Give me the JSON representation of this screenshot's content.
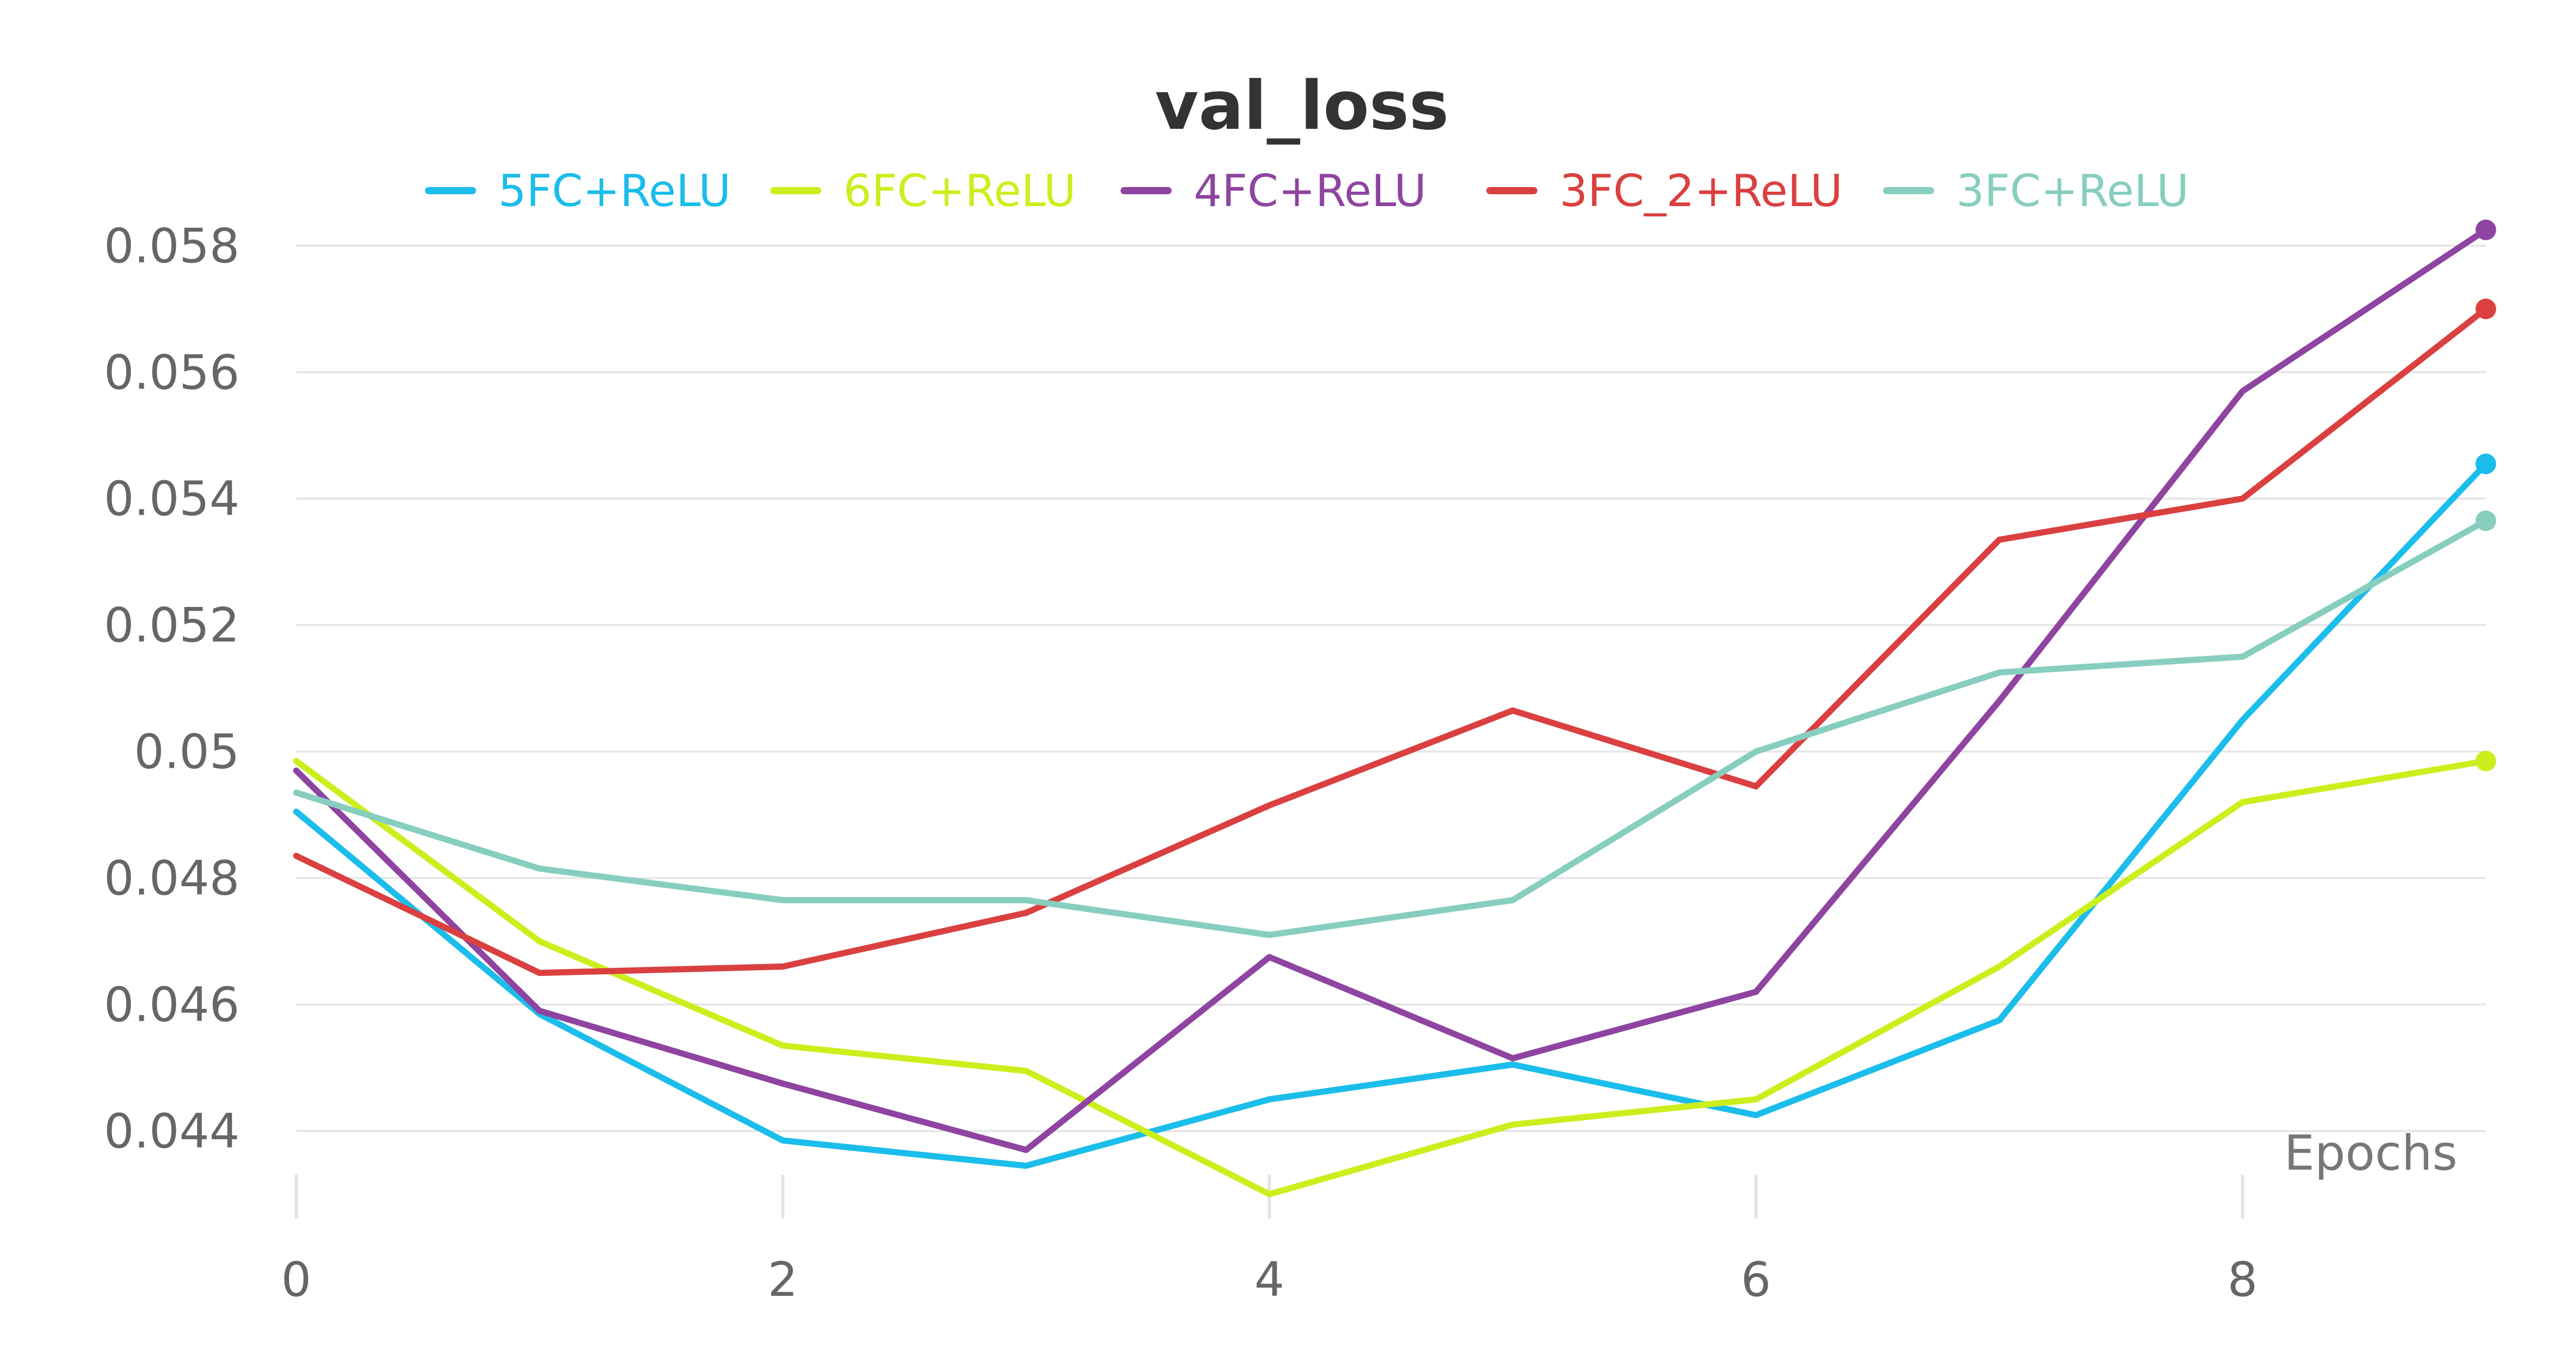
{
  "chart_data": {
    "type": "line",
    "title": "val_loss",
    "xlabel": "Epochs",
    "ylabel": "",
    "x": [
      0,
      1,
      2,
      3,
      4,
      5,
      6,
      7,
      8,
      9
    ],
    "xticks": [
      0,
      2,
      4,
      6,
      8
    ],
    "xtick_labels": [
      "0",
      "2",
      "4",
      "6",
      "8"
    ],
    "yticks": [
      0.044,
      0.046,
      0.048,
      0.05,
      0.052,
      0.054,
      0.056,
      0.058
    ],
    "ytick_labels": [
      "0.044",
      "0.046",
      "0.048",
      "0.05",
      "0.052",
      "0.054",
      "0.056",
      "0.058"
    ],
    "xlim": [
      0,
      9
    ],
    "ylim": [
      0.0429,
      0.0583
    ],
    "grid": "horizontal",
    "legend_position": "top-center",
    "end_markers": true,
    "series": [
      {
        "name": "5FC+ReLU",
        "color": "#1bbdeb",
        "values": [
          0.04905,
          0.04585,
          0.04385,
          0.04345,
          0.0445,
          0.04505,
          0.04425,
          0.04575,
          0.0505,
          0.05455
        ]
      },
      {
        "name": "6FC+ReLU",
        "color": "#cbef1d",
        "values": [
          0.04985,
          0.047,
          0.04535,
          0.04495,
          0.043,
          0.0441,
          0.0445,
          0.0466,
          0.0492,
          0.04985
        ]
      },
      {
        "name": "4FC+ReLU",
        "color": "#8e44a0",
        "values": [
          0.0497,
          0.0459,
          0.04475,
          0.0437,
          0.04675,
          0.04515,
          0.0462,
          0.0508,
          0.0557,
          0.05825
        ]
      },
      {
        "name": "3FC_2+ReLU",
        "color": "#da4040",
        "values": [
          0.04835,
          0.0465,
          0.0466,
          0.04745,
          0.04915,
          0.05065,
          0.04945,
          0.05335,
          0.054,
          0.057
        ]
      },
      {
        "name": "3FC+ReLU",
        "color": "#87cebf",
        "values": [
          0.04935,
          0.04815,
          0.04765,
          0.04765,
          0.0471,
          0.04765,
          0.05,
          0.05125,
          0.0515,
          0.05365
        ]
      }
    ]
  }
}
